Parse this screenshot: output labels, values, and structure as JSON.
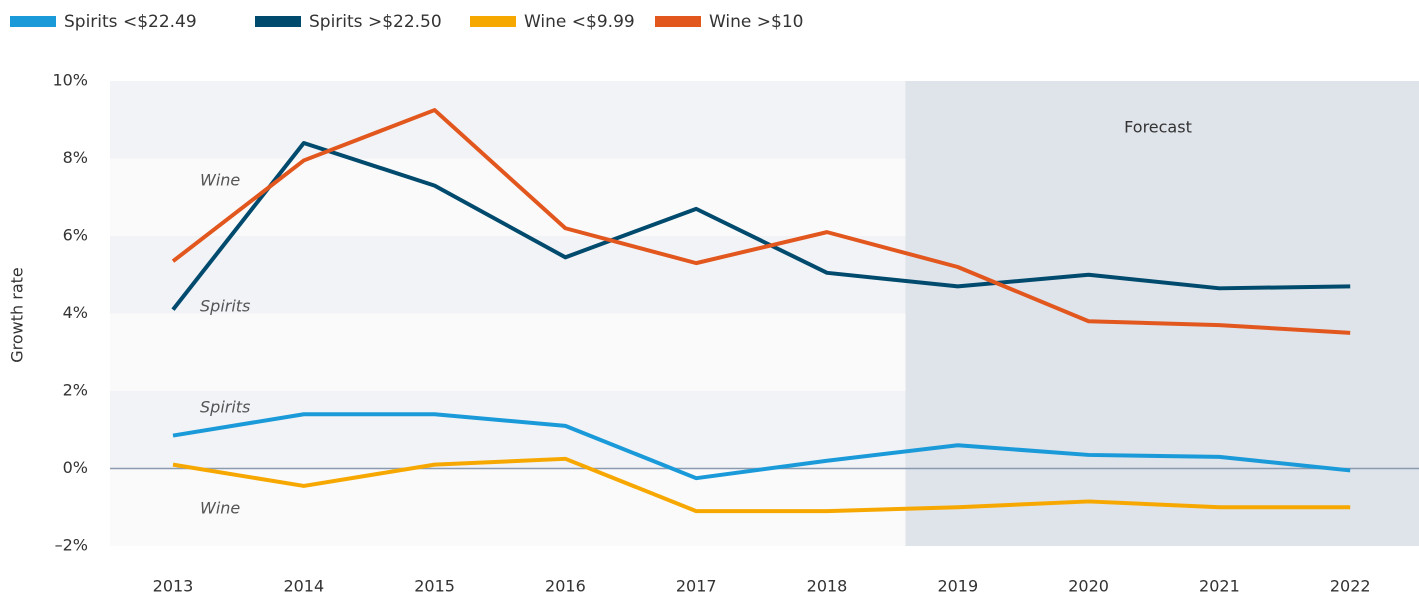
{
  "chart_data": {
    "type": "line",
    "y_label": "Growth rate",
    "categories": [
      "2013",
      "2014",
      "2015",
      "2016",
      "2017",
      "2018",
      "2019",
      "2020",
      "2021",
      "2022"
    ],
    "series": [
      {
        "name": "Spirits <$22.49",
        "color": "#1a9ad9",
        "values": [
          0.85,
          1.4,
          1.4,
          1.1,
          -0.25,
          0.2,
          0.6,
          0.35,
          0.3,
          -0.05
        ]
      },
      {
        "name": "Spirits >$22.50",
        "color": "#004a6e",
        "values": [
          4.1,
          8.4,
          7.3,
          5.45,
          6.7,
          5.05,
          4.7,
          5.0,
          4.65,
          4.7
        ]
      },
      {
        "name": "Wine <$9.99",
        "color": "#f7a800",
        "values": [
          0.1,
          -0.45,
          0.1,
          0.25,
          -1.1,
          -1.1,
          -1.0,
          -0.85,
          -1.0,
          -1.0
        ]
      },
      {
        "name": "Wine >$10",
        "color": "#e2571e",
        "values": [
          5.35,
          7.95,
          9.25,
          6.2,
          5.3,
          6.1,
          5.2,
          3.8,
          3.7,
          3.5
        ]
      }
    ],
    "annotations": [
      "Wine",
      "Spirits",
      "Spirits",
      "Wine",
      "Forecast"
    ],
    "ylim": [
      -2,
      10
    ],
    "yticks": [
      {
        "value": -2,
        "label": "–2%"
      },
      {
        "value": 0,
        "label": "0%"
      },
      {
        "value": 2,
        "label": "2%"
      },
      {
        "value": 4,
        "label": "4%"
      },
      {
        "value": 6,
        "label": "6%"
      },
      {
        "value": 8,
        "label": "8%"
      },
      {
        "value": 10,
        "label": "10%"
      }
    ],
    "legend": "top-left"
  }
}
